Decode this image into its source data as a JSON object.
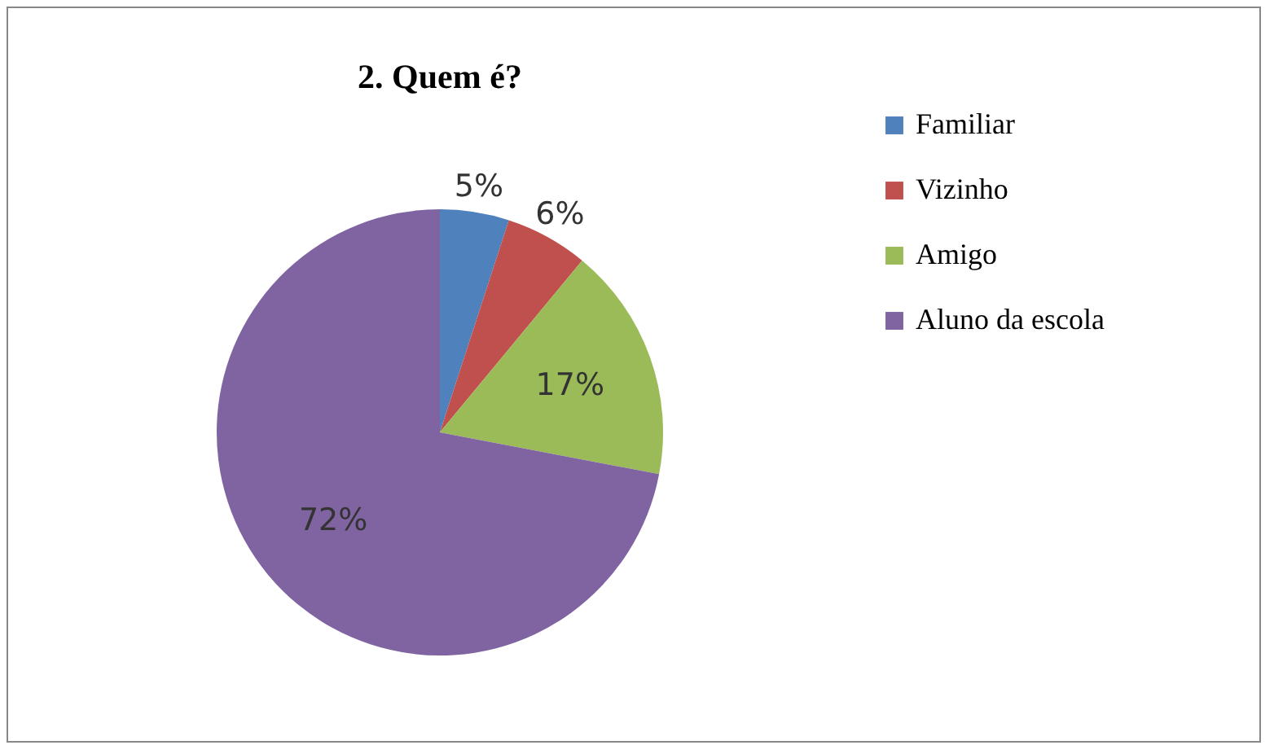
{
  "chart_data": {
    "type": "pie",
    "title": "2. Quem é?",
    "categories": [
      "Familiar",
      "Vizinho",
      "Amigo",
      "Aluno da escola"
    ],
    "values": [
      5,
      6,
      17,
      72
    ],
    "colors": [
      "#4f81bd",
      "#c0504d",
      "#9bbb59",
      "#8064a2"
    ],
    "value_labels": [
      "5%",
      "6%",
      "17%",
      "72%"
    ],
    "legend": "right"
  }
}
